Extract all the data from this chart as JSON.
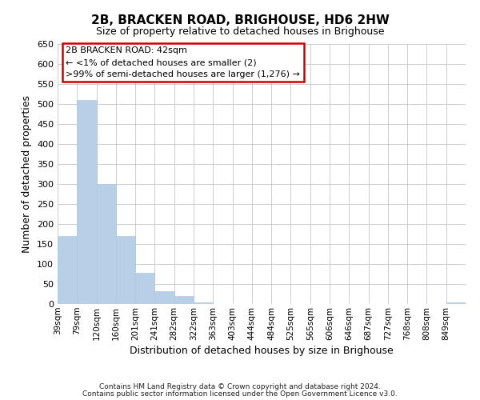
{
  "title": "2B, BRACKEN ROAD, BRIGHOUSE, HD6 2HW",
  "subtitle": "Size of property relative to detached houses in Brighouse",
  "xlabel": "Distribution of detached houses by size in Brighouse",
  "ylabel": "Number of detached properties",
  "bar_labels": [
    "39sqm",
    "79sqm",
    "120sqm",
    "160sqm",
    "201sqm",
    "241sqm",
    "282sqm",
    "322sqm",
    "363sqm",
    "403sqm",
    "444sqm",
    "484sqm",
    "525sqm",
    "565sqm",
    "606sqm",
    "646sqm",
    "687sqm",
    "727sqm",
    "768sqm",
    "808sqm",
    "849sqm"
  ],
  "bar_values": [
    170,
    510,
    300,
    170,
    78,
    32,
    20,
    5,
    0,
    0,
    0,
    0,
    0,
    0,
    0,
    0,
    0,
    0,
    0,
    0,
    5
  ],
  "bar_color": "#b8cfe8",
  "bar_edge_color": "#b0c8e4",
  "ylim": [
    0,
    650
  ],
  "yticks": [
    0,
    50,
    100,
    150,
    200,
    250,
    300,
    350,
    400,
    450,
    500,
    550,
    600,
    650
  ],
  "annotation_title": "2B BRACKEN ROAD: 42sqm",
  "annotation_line1": "← <1% of detached houses are smaller (2)",
  "annotation_line2": ">99% of semi-detached houses are larger (1,276) →",
  "annotation_box_color": "#ffffff",
  "annotation_box_edge": "#cc0000",
  "footnote1": "Contains HM Land Registry data © Crown copyright and database right 2024.",
  "footnote2": "Contains public sector information licensed under the Open Government Licence v3.0.",
  "background_color": "#ffffff",
  "grid_color": "#cccccc"
}
